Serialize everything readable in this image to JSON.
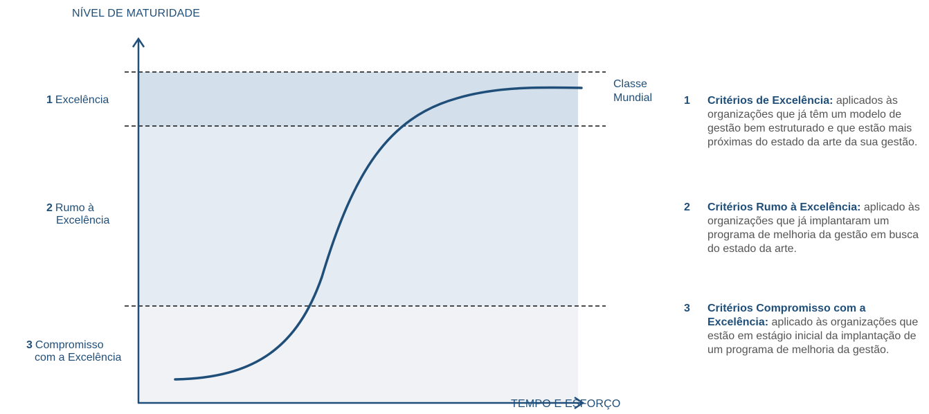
{
  "y_axis_title": "NÍVEL DE MATURIDADE",
  "x_axis_title": "TEMPO E ESFORÇO",
  "top_label": {
    "line1": "Classe",
    "line2": "Mundial"
  },
  "levels": [
    {
      "num": "1",
      "line1": "Excelência",
      "line2": ""
    },
    {
      "num": "2",
      "line1": "Rumo à",
      "line2": "Excelência"
    },
    {
      "num": "3",
      "line1": "Compromisso",
      "line2": "com a Excelência"
    }
  ],
  "legend": [
    {
      "num": "1",
      "term": "Critérios de Excelência:",
      "text": "aplicados às organizações que já têm um modelo de gestão bem estruturado e que estão mais próximas do estado da arte da sua gestão."
    },
    {
      "num": "2",
      "term": "Critérios Rumo à Excelência:",
      "text": "aplicado às organizações que já implantaram um programa de melhoria da gestão em busca do estado da arte."
    },
    {
      "num": "3",
      "term": "Critérios Compromisso com a Excelência:",
      "text": "aplicado às organizações que estão em estágio inicial da implantação de um programa de melhoria da gestão."
    }
  ],
  "colors": {
    "navy": "#1f4e79",
    "band_top": "#d3dfeb",
    "band_mid": "#e4ebf3",
    "band_bottom": "#f0f2f6",
    "legend_text": "#555555"
  }
}
